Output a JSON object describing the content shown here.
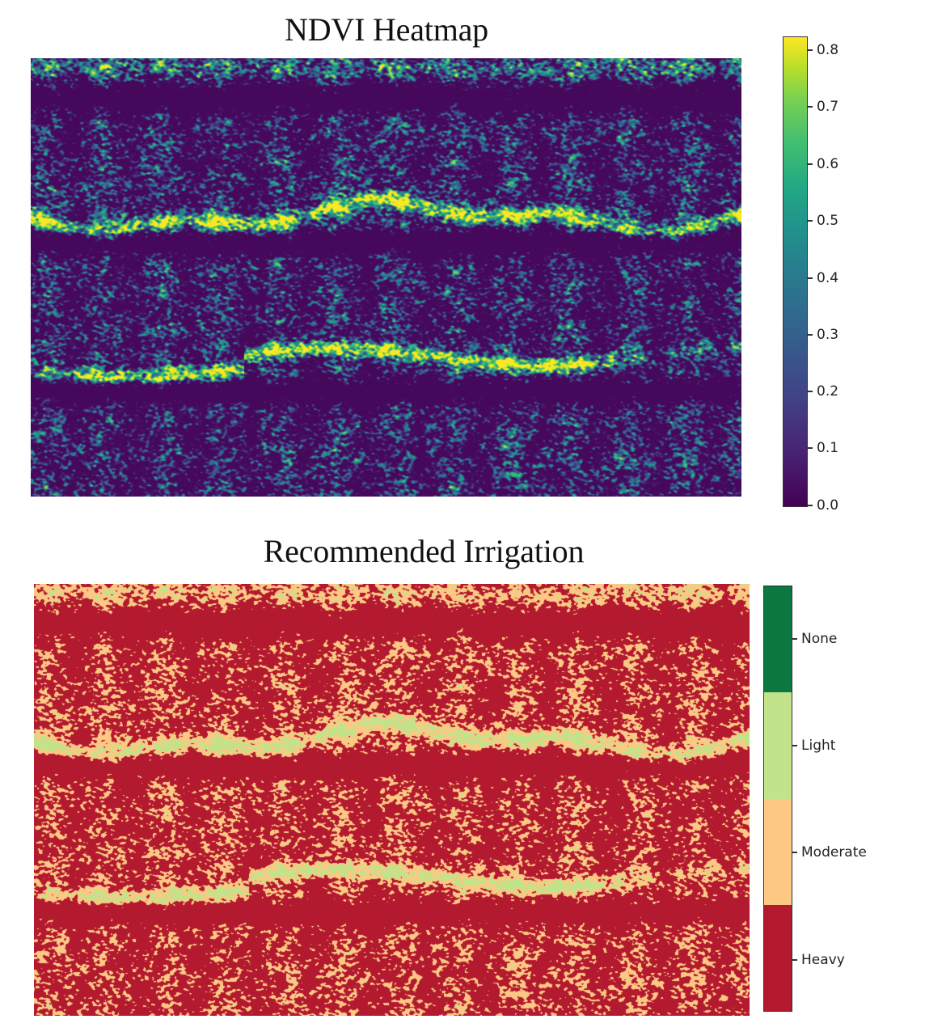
{
  "chart_data": [
    {
      "type": "heatmap",
      "title": "NDVI Heatmap",
      "xlabel": "",
      "ylabel": "",
      "axes_visible": false,
      "colormap": "viridis",
      "colorbar": {
        "range": [
          0.0,
          0.82
        ],
        "ticks": [
          "0.0",
          "0.1",
          "0.2",
          "0.3",
          "0.4",
          "0.5",
          "0.6",
          "0.7",
          "0.8"
        ],
        "tick_values": [
          0.0,
          0.1,
          0.2,
          0.3,
          0.4,
          0.5,
          0.6,
          0.7,
          0.8
        ],
        "colors": [
          "#440154",
          "#482475",
          "#414487",
          "#355f8d",
          "#2a788e",
          "#21918c",
          "#22a884",
          "#44bf70",
          "#7ad151",
          "#bddf26",
          "#fde725"
        ]
      },
      "description": "Aerial crop-field NDVI; dark purple background (~0.0-0.1) with dense teal/green vegetation texture (~0.3-0.6) and two bright yellow-green hedgerow bands (~0.7-0.8) crossing horizontally; dark low-NDVI strips run along the top, middle, and lower sections."
    },
    {
      "type": "heatmap",
      "title": "Recommended Irrigation",
      "xlabel": "",
      "ylabel": "",
      "axes_visible": false,
      "colormap": "categorical",
      "legend_position": "right colorbar",
      "categories": [
        "None",
        "Light",
        "Moderate",
        "Heavy"
      ],
      "category_colors": {
        "None": "#0a7840",
        "Light": "#c2e38a",
        "Moderate": "#fcc884",
        "Heavy": "#b3192f"
      },
      "description": "Classified irrigation map derived from NDVI: predominantly Heavy (red) with Moderate (orange-tan) texture; Light (pale green) along the two vegetation bands; None not visibly present."
    }
  ],
  "ndvi": {
    "title": "NDVI Heatmap",
    "colorbar_ticks": [
      "0.8",
      "0.7",
      "0.6",
      "0.5",
      "0.4",
      "0.3",
      "0.2",
      "0.1",
      "0.0"
    ]
  },
  "irrigation": {
    "title": "Recommended Irrigation",
    "legend": [
      {
        "label": "None",
        "color": "#0a7840"
      },
      {
        "label": "Light",
        "color": "#c2e38a"
      },
      {
        "label": "Moderate",
        "color": "#fcc884"
      },
      {
        "label": "Heavy",
        "color": "#b3192f"
      }
    ]
  }
}
